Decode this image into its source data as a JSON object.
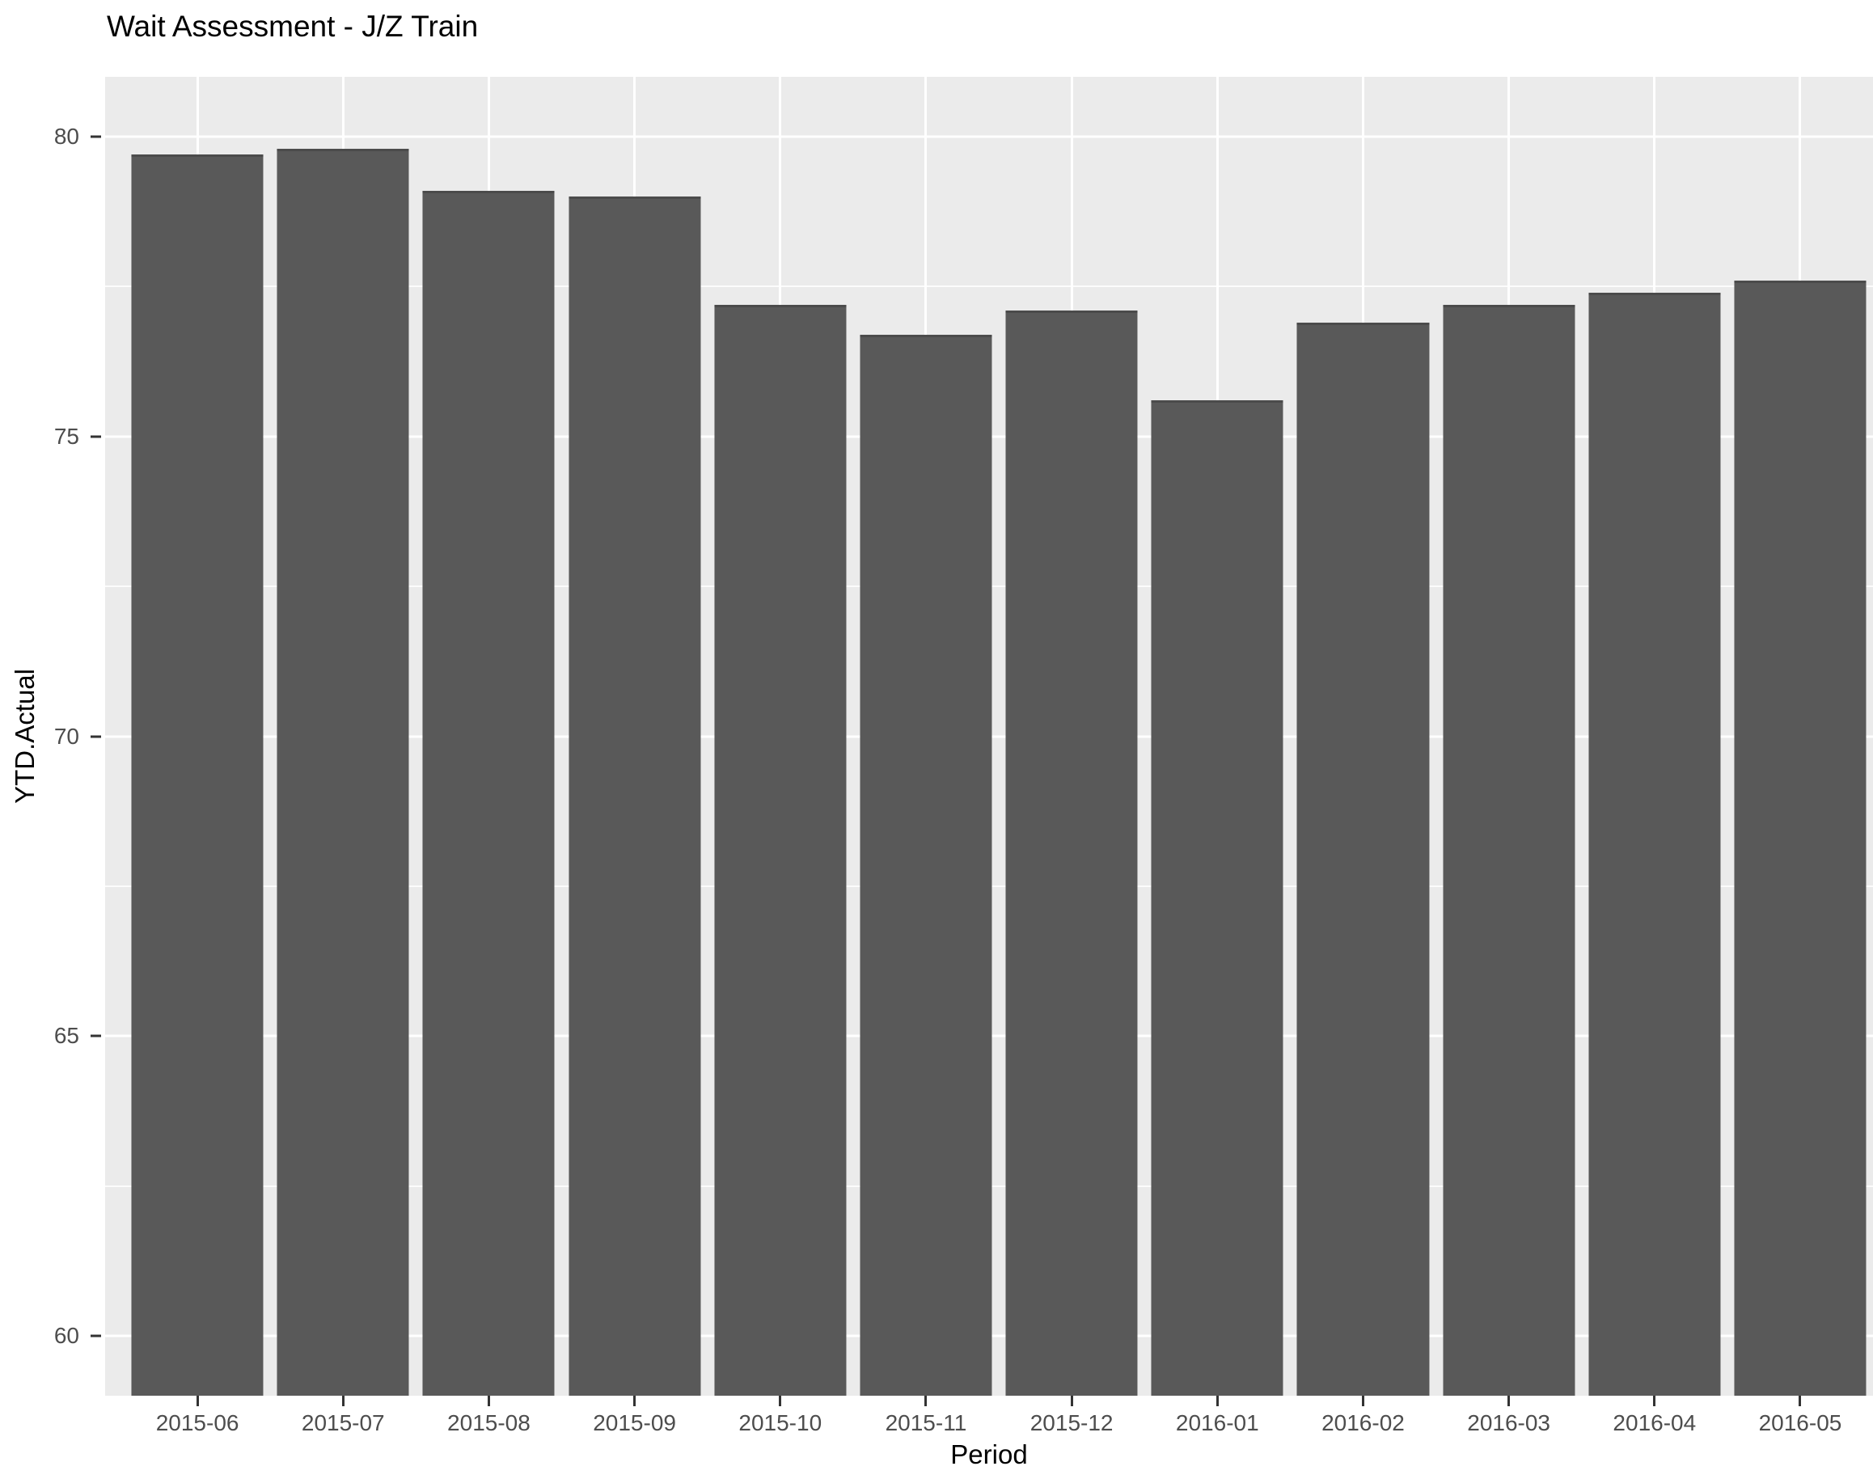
{
  "chart_data": {
    "type": "bar",
    "title": "Wait Assessment - J/Z Train",
    "xlabel": "Period",
    "ylabel": "YTD.Actual",
    "categories": [
      "2015-06",
      "2015-07",
      "2015-08",
      "2015-09",
      "2015-10",
      "2015-11",
      "2015-12",
      "2016-01",
      "2016-02",
      "2016-03",
      "2016-04",
      "2016-05"
    ],
    "values": [
      79.7,
      79.8,
      79.1,
      79.0,
      77.2,
      76.7,
      77.1,
      75.6,
      76.9,
      77.2,
      77.4,
      77.6
    ],
    "ylim": [
      59,
      81
    ],
    "yticks": [
      60,
      65,
      70,
      75,
      80
    ],
    "ytick_labels": [
      "60",
      "65",
      "70",
      "75",
      "80"
    ],
    "minor_yticks": [
      62.5,
      67.5,
      72.5,
      77.5
    ],
    "grid": true,
    "legend": "none",
    "colors": {
      "bar": "#595959",
      "panel_background": "#EBEBEB",
      "gridline": "#FFFFFF",
      "tick_label": "#4D4D4D",
      "axis_title": "#000000",
      "title": "#000000"
    }
  }
}
